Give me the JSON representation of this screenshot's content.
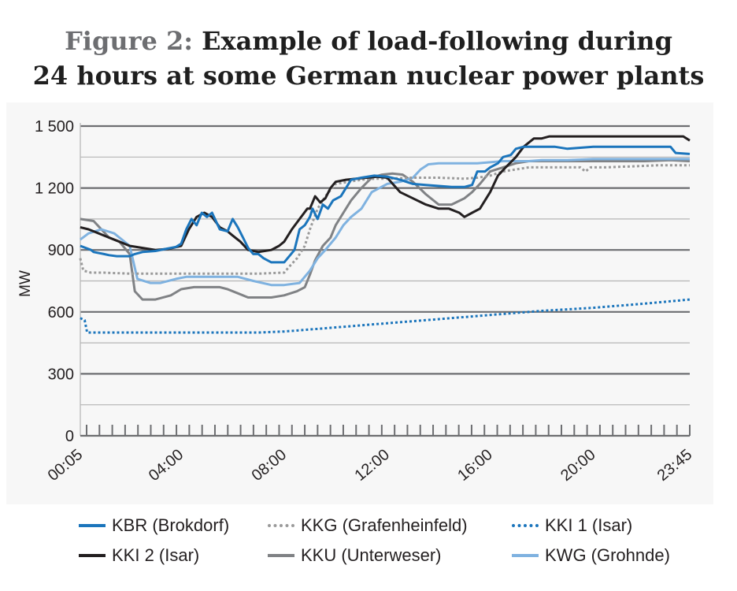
{
  "title": {
    "prefix": "Figure 2:",
    "line1": "Example of load-following during",
    "line2": "24 hours at some German nuclear power plants"
  },
  "chart_data": {
    "type": "line",
    "title": "Figure 2: Example of load-following during 24 hours at some German nuclear power plants",
    "xlabel": "",
    "ylabel": "MW",
    "ylim": [
      0,
      1500
    ],
    "y_ticks": [
      0,
      300,
      600,
      900,
      1200,
      1500
    ],
    "y_tick_labels": [
      "0",
      "300",
      "600",
      "900",
      "1 200",
      "1 500"
    ],
    "x_range_hours": [
      0.0833,
      23.75
    ],
    "x_ticks": [
      0.0833,
      4,
      8,
      12,
      16,
      20,
      23.75
    ],
    "x_tick_labels": [
      "00:05",
      "04:00",
      "08:00",
      "12:00",
      "16:00",
      "20:00",
      "23:45"
    ],
    "grid": true,
    "legend_position": "bottom",
    "series": [
      {
        "name": "KBR (Brokdorf)",
        "color": "#1b75bc",
        "style": "solid",
        "x": [
          0.08,
          0.5,
          0.6,
          1.0,
          1.2,
          1.5,
          2.0,
          2.2,
          2.5,
          3.0,
          3.4,
          3.8,
          4.0,
          4.2,
          4.4,
          4.6,
          4.8,
          5.0,
          5.2,
          5.5,
          5.8,
          6.0,
          6.2,
          6.4,
          6.6,
          6.8,
          7.0,
          7.2,
          7.5,
          8.0,
          8.4,
          8.6,
          8.8,
          9.0,
          9.1,
          9.3,
          9.5,
          9.7,
          9.9,
          10.2,
          10.6,
          11.0,
          11.5,
          12.0,
          12.5,
          13.0,
          13.5,
          14.0,
          14.5,
          15.0,
          15.3,
          15.5,
          15.8,
          16.0,
          16.3,
          16.5,
          16.8,
          17.0,
          17.3,
          17.6,
          18.0,
          18.5,
          19.0,
          19.5,
          20.0,
          21.0,
          22.0,
          23.0,
          23.2,
          23.75
        ],
        "values": [
          920,
          900,
          890,
          880,
          875,
          870,
          870,
          880,
          890,
          895,
          905,
          915,
          930,
          1000,
          1050,
          1020,
          1080,
          1060,
          1080,
          1000,
          990,
          1050,
          1010,
          960,
          910,
          880,
          880,
          860,
          840,
          840,
          900,
          1000,
          1020,
          1060,
          1100,
          1050,
          1120,
          1100,
          1140,
          1160,
          1240,
          1250,
          1260,
          1255,
          1240,
          1220,
          1215,
          1210,
          1205,
          1205,
          1215,
          1280,
          1280,
          1300,
          1320,
          1350,
          1360,
          1390,
          1400,
          1400,
          1400,
          1400,
          1390,
          1395,
          1400,
          1400,
          1400,
          1400,
          1370,
          1365
        ]
      },
      {
        "name": "KKG (Grafenheinfeld)",
        "color": "#9a9a9a",
        "style": "dotted",
        "x": [
          0.08,
          0.2,
          0.5,
          1.0,
          2.0,
          3.0,
          4.0,
          5.0,
          6.0,
          7.0,
          8.0,
          8.2,
          8.5,
          8.8,
          9.0,
          9.3,
          9.6,
          10.0,
          10.5,
          11.0,
          11.5,
          12.0,
          13.0,
          14.0,
          15.0,
          15.5,
          16.0,
          16.5,
          17.0,
          17.5,
          18.0,
          19.0,
          19.5,
          19.7,
          19.9,
          20.5,
          21.5,
          22.5,
          23.75
        ],
        "values": [
          860,
          800,
          790,
          790,
          785,
          785,
          785,
          785,
          785,
          785,
          790,
          820,
          860,
          920,
          1000,
          1100,
          1160,
          1220,
          1230,
          1240,
          1245,
          1245,
          1250,
          1250,
          1245,
          1250,
          1260,
          1280,
          1290,
          1300,
          1300,
          1300,
          1300,
          1280,
          1300,
          1300,
          1305,
          1310,
          1310
        ]
      },
      {
        "name": "KKI 1 (Isar)",
        "color": "#1b75bc",
        "style": "dotted",
        "x": [
          0.08,
          0.25,
          0.35,
          1.0,
          3.0,
          5.0,
          7.0,
          8.0,
          10.0,
          12.0,
          14.0,
          16.0,
          18.0,
          20.0,
          22.0,
          23.75
        ],
        "values": [
          570,
          560,
          500,
          500,
          500,
          500,
          500,
          505,
          525,
          545,
          565,
          585,
          605,
          620,
          640,
          660
        ]
      },
      {
        "name": "KKI 2 (Isar)",
        "color": "#231f20",
        "style": "solid",
        "x": [
          0.08,
          0.4,
          0.8,
          1.2,
          1.6,
          2.0,
          2.5,
          3.0,
          3.5,
          4.0,
          4.3,
          4.6,
          4.9,
          5.2,
          5.5,
          5.8,
          6.0,
          6.3,
          6.6,
          7.0,
          7.5,
          7.8,
          8.0,
          8.3,
          8.6,
          8.9,
          9.0,
          9.2,
          9.4,
          9.6,
          9.8,
          10.0,
          10.4,
          10.8,
          11.2,
          11.6,
          12.0,
          12.5,
          13.0,
          13.5,
          14.0,
          14.4,
          14.8,
          15.0,
          15.3,
          15.6,
          16.0,
          16.3,
          16.6,
          17.0,
          17.3,
          17.7,
          18.0,
          18.3,
          19.0,
          20.0,
          21.0,
          22.0,
          23.0,
          23.5,
          23.75
        ],
        "values": [
          1010,
          1000,
          980,
          960,
          940,
          920,
          910,
          900,
          905,
          920,
          1000,
          1060,
          1080,
          1060,
          1010,
          990,
          970,
          940,
          900,
          890,
          900,
          920,
          940,
          1000,
          1050,
          1100,
          1100,
          1160,
          1130,
          1150,
          1200,
          1230,
          1240,
          1245,
          1250,
          1255,
          1250,
          1180,
          1150,
          1120,
          1100,
          1100,
          1080,
          1060,
          1080,
          1100,
          1180,
          1260,
          1300,
          1350,
          1400,
          1440,
          1440,
          1450,
          1450,
          1450,
          1450,
          1450,
          1450,
          1450,
          1430
        ]
      },
      {
        "name": "KKU (Unterweser)",
        "color": "#808285",
        "style": "solid",
        "x": [
          0.08,
          0.6,
          0.9,
          1.2,
          1.6,
          2.0,
          2.2,
          2.5,
          3.0,
          3.6,
          4.0,
          4.5,
          5.0,
          5.5,
          5.8,
          6.2,
          6.6,
          7.0,
          7.5,
          8.0,
          8.5,
          8.8,
          9.0,
          9.2,
          9.5,
          9.8,
          10.0,
          10.3,
          10.6,
          11.0,
          11.4,
          11.8,
          12.2,
          12.6,
          13.0,
          13.5,
          14.0,
          14.5,
          15.0,
          15.3,
          15.6,
          16.0,
          16.5,
          17.0,
          17.5,
          18.0,
          19.0,
          20.0,
          21.0,
          22.0,
          23.0,
          23.75
        ],
        "values": [
          1050,
          1040,
          1000,
          960,
          940,
          880,
          700,
          660,
          660,
          680,
          710,
          720,
          720,
          720,
          710,
          690,
          670,
          670,
          670,
          680,
          700,
          720,
          780,
          850,
          920,
          960,
          1020,
          1080,
          1140,
          1200,
          1250,
          1265,
          1270,
          1265,
          1230,
          1170,
          1120,
          1120,
          1150,
          1180,
          1220,
          1280,
          1300,
          1320,
          1330,
          1330,
          1330,
          1330,
          1330,
          1330,
          1335,
          1330
        ]
      },
      {
        "name": "KWG (Grohnde)",
        "color": "#7fb2e0",
        "style": "solid",
        "x": [
          0.08,
          0.4,
          0.9,
          1.4,
          2.0,
          2.3,
          2.8,
          3.2,
          3.8,
          4.2,
          4.8,
          5.2,
          5.8,
          6.2,
          6.8,
          7.5,
          8.0,
          8.6,
          9.0,
          9.3,
          9.6,
          10.0,
          10.3,
          10.6,
          11.0,
          11.4,
          12.0,
          12.5,
          13.0,
          13.3,
          13.6,
          14.0,
          14.5,
          15.0,
          15.5,
          16.0,
          16.5,
          17.0,
          17.5,
          18.0,
          19.0,
          20.0,
          21.0,
          22.0,
          23.0,
          23.75
        ],
        "values": [
          950,
          980,
          1000,
          980,
          920,
          760,
          740,
          740,
          760,
          770,
          770,
          770,
          770,
          770,
          750,
          730,
          730,
          740,
          800,
          860,
          900,
          960,
          1020,
          1060,
          1100,
          1180,
          1220,
          1230,
          1250,
          1290,
          1315,
          1320,
          1320,
          1320,
          1320,
          1325,
          1330,
          1330,
          1330,
          1335,
          1335,
          1340,
          1340,
          1340,
          1340,
          1340
        ]
      }
    ]
  },
  "legend": [
    {
      "label": "KBR (Brokdorf)",
      "color": "#1b75bc",
      "style": "solid"
    },
    {
      "label": "KKG (Grafenheinfeld)",
      "color": "#9a9a9a",
      "style": "dotted"
    },
    {
      "label": "KKI 1 (Isar)",
      "color": "#1b75bc",
      "style": "dotted"
    },
    {
      "label": "KKI 2 (Isar)",
      "color": "#231f20",
      "style": "solid"
    },
    {
      "label": "KKU (Unterweser)",
      "color": "#808285",
      "style": "solid"
    },
    {
      "label": "KWG (Grohnde)",
      "color": "#7fb2e0",
      "style": "solid"
    }
  ]
}
